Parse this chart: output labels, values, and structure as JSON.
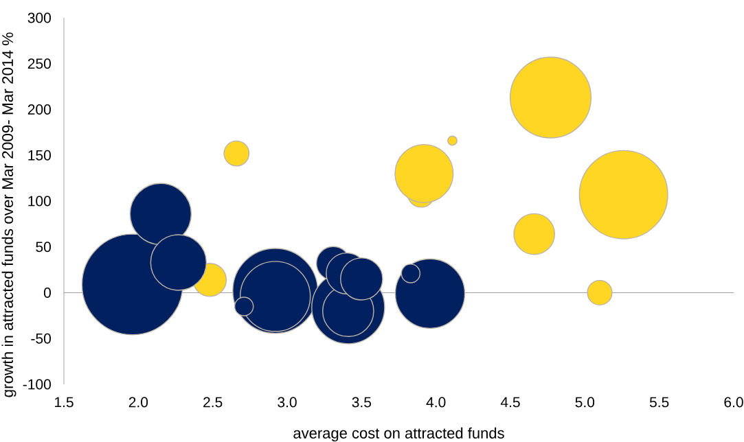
{
  "chart_data": {
    "type": "bubble",
    "xlabel": "average cost on attracted funds",
    "ylabel": "growth in attracted funds over Mar 2009- Mar 2014 %",
    "xlim": [
      1.5,
      6.0
    ],
    "xticks": [
      {
        "value": 1.5,
        "label": "1.5"
      },
      {
        "value": 2.0,
        "label": "2.0"
      },
      {
        "value": 2.5,
        "label": "2.5"
      },
      {
        "value": 3.0,
        "label": "3.0"
      },
      {
        "value": 3.5,
        "label": "3.5"
      },
      {
        "value": 4.0,
        "label": "4.0"
      },
      {
        "value": 4.5,
        "label": "4.5"
      },
      {
        "value": 5.0,
        "label": "5.0"
      },
      {
        "value": 5.5,
        "label": "5.5"
      },
      {
        "value": 6.0,
        "label": "6.0"
      }
    ],
    "ylim": [
      -100,
      300
    ],
    "yticks": [
      -100,
      -50,
      0,
      50,
      100,
      150,
      200,
      250,
      300
    ],
    "series": [
      {
        "color": "#ffd624",
        "x": [
          2.48,
          2.66,
          3.9,
          3.92,
          4.11,
          4.66,
          4.77,
          5.1,
          5.26
        ],
        "values": [
          14,
          152,
          108,
          130,
          166,
          64,
          213,
          0,
          107
        ],
        "sizes": [
          0.112,
          0.065,
          0.075,
          0.338,
          0.01,
          0.168,
          0.647,
          0.063,
          0.772
        ]
      },
      {
        "color": "#00205f",
        "x": [
          1.96,
          2.15,
          2.27,
          2.92,
          2.92,
          2.71,
          3.41,
          3.41,
          3.31,
          3.4,
          3.5,
          3.96,
          3.83
        ],
        "values": [
          9,
          86,
          33,
          2,
          -4,
          -15,
          -16,
          -20,
          32,
          21,
          15,
          -1,
          21
        ],
        "sizes": [
          1.0,
          0.373,
          0.31,
          0.713,
          0.488,
          0.037,
          0.527,
          0.261,
          0.116,
          0.17,
          0.179,
          0.479,
          0.037
        ]
      }
    ]
  }
}
